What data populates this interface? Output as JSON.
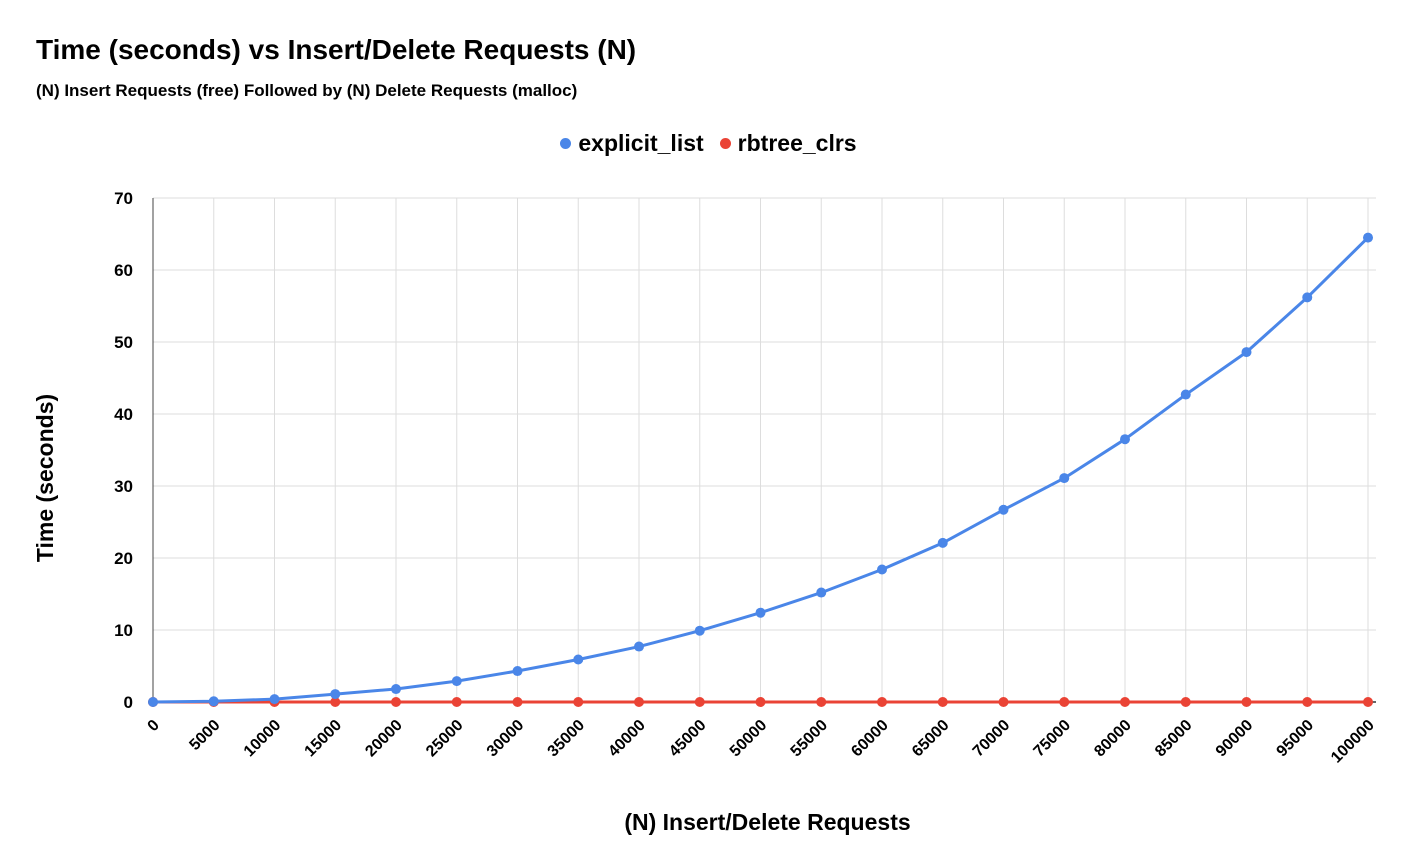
{
  "chart_data": {
    "type": "line",
    "title": "Time (seconds) vs Insert/Delete Requests (N)",
    "subtitle": "(N) Insert Requests (free) Followed by (N) Delete Requests (malloc)",
    "xlabel": "(N) Insert/Delete Requests",
    "ylabel": "Time (seconds)",
    "x": [
      0,
      5000,
      10000,
      15000,
      20000,
      25000,
      30000,
      35000,
      40000,
      45000,
      50000,
      55000,
      60000,
      65000,
      70000,
      75000,
      80000,
      85000,
      90000,
      95000,
      100000
    ],
    "x_tick_labels": [
      "0",
      "5000",
      "10000",
      "15000",
      "20000",
      "25000",
      "30000",
      "35000",
      "40000",
      "45000",
      "50000",
      "55000",
      "60000",
      "65000",
      "70000",
      "75000",
      "80000",
      "85000",
      "90000",
      "95000",
      "100000"
    ],
    "ylim": [
      0,
      70
    ],
    "y_ticks": [
      0,
      10,
      20,
      30,
      40,
      50,
      60,
      70
    ],
    "grid": true,
    "legend": "top-center",
    "series": [
      {
        "name": "explicit_list",
        "color": "#4a86e8",
        "values": [
          0,
          0.1,
          0.4,
          1.1,
          1.8,
          2.9,
          4.3,
          5.9,
          7.7,
          9.9,
          12.4,
          15.2,
          18.4,
          22.1,
          26.7,
          31.1,
          36.5,
          42.7,
          48.6,
          56.2,
          64.5
        ]
      },
      {
        "name": "rbtree_clrs",
        "color": "#ea4335",
        "values": [
          0,
          0,
          0,
          0,
          0,
          0,
          0,
          0,
          0,
          0,
          0,
          0,
          0,
          0,
          0,
          0,
          0,
          0,
          0,
          0,
          0
        ]
      }
    ]
  }
}
